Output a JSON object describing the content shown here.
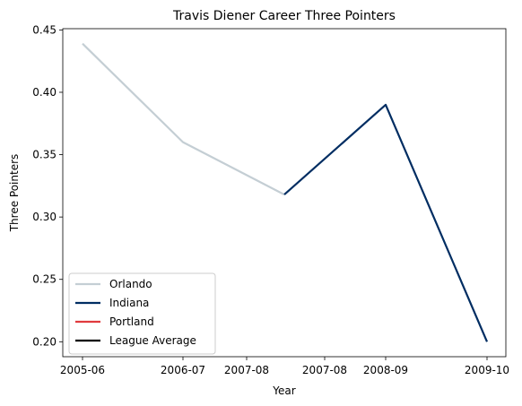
{
  "chart_data": {
    "type": "line",
    "title": "Travis Diener Career Three Pointers",
    "xlabel": "Year",
    "ylabel": "Three Pointers",
    "x_tick_labels": [
      "2005-06",
      "2006-07",
      "2007-08",
      "2007-08",
      "2008-09",
      "2009-10"
    ],
    "y_ticks": [
      "0.20",
      "0.25",
      "0.30",
      "0.35",
      "0.40",
      "0.45"
    ],
    "ylim": [
      0.188,
      0.451
    ],
    "grid": false,
    "legend_position": "lower-left",
    "series": [
      {
        "name": "Orlando",
        "color": "#c4ced4",
        "points": [
          {
            "x": "2005-06",
            "y": 0.439
          },
          {
            "x": "2006-07",
            "y": 0.36
          },
          {
            "x": "2007-08",
            "y": 0.318
          }
        ]
      },
      {
        "name": "Indiana",
        "color": "#002d62",
        "points": [
          {
            "x": "2007-08",
            "y": 0.318
          },
          {
            "x": "2008-09",
            "y": 0.39
          },
          {
            "x": "2009-10",
            "y": 0.2
          }
        ]
      },
      {
        "name": "Portland",
        "color": "#e03a3e",
        "points": []
      },
      {
        "name": "League Average",
        "color": "#000000",
        "points": []
      }
    ]
  }
}
